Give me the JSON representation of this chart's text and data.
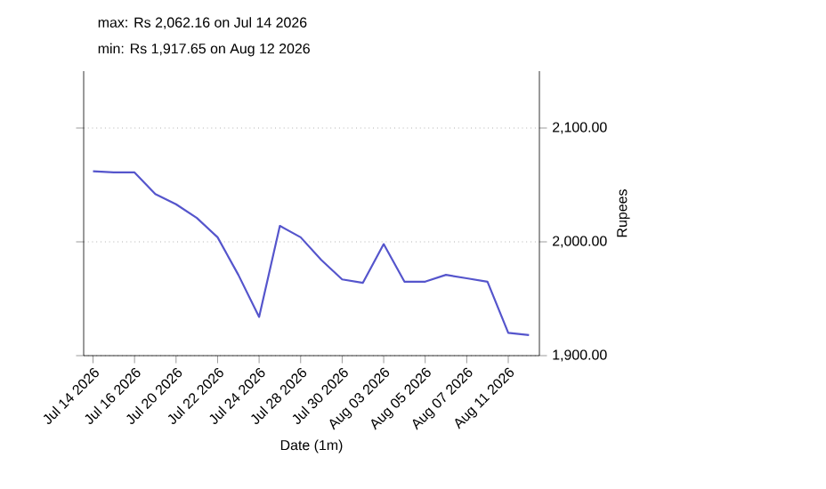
{
  "chart_data": {
    "type": "line",
    "title": "max: Rs 2,062.16 on Jul 14 2026",
    "subtitle": "min: Rs 1,917.65 on Aug 12 2026",
    "xlabel": "Date (1m)",
    "ylabel": "Rupees",
    "categories": [
      "Jul 14 2026",
      null,
      "Jul 16 2026",
      null,
      "Jul 20 2026",
      null,
      "Jul 22 2026",
      null,
      "Jul 24 2026",
      null,
      "Jul 28 2026",
      null,
      "Jul 30 2026",
      null,
      "Aug 03 2026",
      null,
      "Aug 05 2026",
      null,
      "Aug 07 2026",
      null,
      "Aug 11 2026",
      null
    ],
    "series": [
      {
        "color": "#5555cc",
        "values": [
          2062,
          2061,
          2061,
          2042,
          2033,
          2021,
          2004,
          1971,
          1934,
          2014,
          2004,
          1984,
          1967,
          1964,
          1998,
          1965,
          1965,
          1971,
          1968,
          1965,
          1920,
          1918
        ]
      }
    ],
    "ylim": [
      1900,
      2150
    ],
    "yticks": [
      {
        "value": 1900,
        "label": "1,900.00"
      },
      {
        "value": 2000,
        "label": "2,000.00"
      },
      {
        "value": 2100,
        "label": "2,100.00"
      }
    ],
    "grid": "y",
    "marker": "none",
    "line_style": "solid"
  }
}
